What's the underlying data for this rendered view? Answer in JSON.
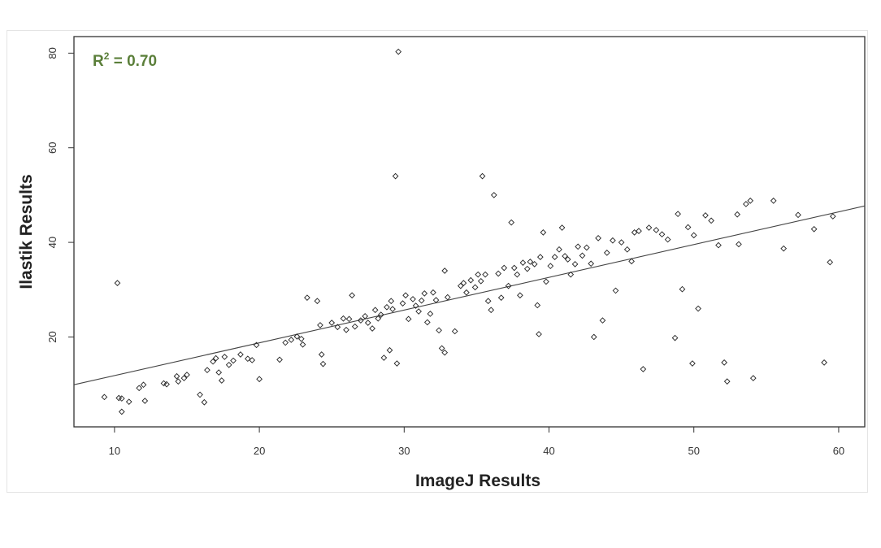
{
  "colors": {
    "annotation": "#5b7f3a",
    "points": "#222222",
    "line": "#444444",
    "axes": "#333333"
  },
  "chart_data": {
    "type": "scatter",
    "xlabel": "ImageJ Results",
    "ylabel": "Ilastik Results",
    "xlim": [
      7.2,
      61.8
    ],
    "ylim": [
      1.0,
      83.5
    ],
    "x_ticks": [
      10,
      20,
      30,
      40,
      50,
      60
    ],
    "y_ticks": [
      20,
      40,
      60,
      80
    ],
    "grid": false,
    "annotation": {
      "prefix": "R",
      "superscript": "2",
      "suffix": " = 0.70"
    },
    "regression_line": {
      "x": [
        7.2,
        61.8
      ],
      "y": [
        9.9,
        47.7
      ]
    },
    "points": [
      [
        9.3,
        7.3
      ],
      [
        10.2,
        31.4
      ],
      [
        10.3,
        7.1
      ],
      [
        10.5,
        7.0
      ],
      [
        10.5,
        4.2
      ],
      [
        11.0,
        6.3
      ],
      [
        11.7,
        9.2
      ],
      [
        12.0,
        9.9
      ],
      [
        12.1,
        6.5
      ],
      [
        13.4,
        10.2
      ],
      [
        13.6,
        10.0
      ],
      [
        14.3,
        11.7
      ],
      [
        14.4,
        10.6
      ],
      [
        14.8,
        11.3
      ],
      [
        15.0,
        12.0
      ],
      [
        15.9,
        7.8
      ],
      [
        16.2,
        6.2
      ],
      [
        16.4,
        13.0
      ],
      [
        16.8,
        14.8
      ],
      [
        17.0,
        15.5
      ],
      [
        17.2,
        12.5
      ],
      [
        17.4,
        10.8
      ],
      [
        17.6,
        15.8
      ],
      [
        17.9,
        14.1
      ],
      [
        18.2,
        15.0
      ],
      [
        18.7,
        16.3
      ],
      [
        19.2,
        15.4
      ],
      [
        19.5,
        15.1
      ],
      [
        19.8,
        18.3
      ],
      [
        20.0,
        11.1
      ],
      [
        21.4,
        15.2
      ],
      [
        21.8,
        18.8
      ],
      [
        22.2,
        19.4
      ],
      [
        22.6,
        20.1
      ],
      [
        22.9,
        19.6
      ],
      [
        23.0,
        18.4
      ],
      [
        23.3,
        28.3
      ],
      [
        24.0,
        27.6
      ],
      [
        24.2,
        22.5
      ],
      [
        24.4,
        14.3
      ],
      [
        24.3,
        16.3
      ],
      [
        25.0,
        23.0
      ],
      [
        25.4,
        22.1
      ],
      [
        25.8,
        23.9
      ],
      [
        26.0,
        21.5
      ],
      [
        26.2,
        23.8
      ],
      [
        26.4,
        28.8
      ],
      [
        26.6,
        22.2
      ],
      [
        27.0,
        23.5
      ],
      [
        27.3,
        24.4
      ],
      [
        27.5,
        23.0
      ],
      [
        27.8,
        21.8
      ],
      [
        28.0,
        25.7
      ],
      [
        28.2,
        23.9
      ],
      [
        28.4,
        24.7
      ],
      [
        28.6,
        15.6
      ],
      [
        28.8,
        26.3
      ],
      [
        29.0,
        17.2
      ],
      [
        29.1,
        27.6
      ],
      [
        29.2,
        25.9
      ],
      [
        29.4,
        54.0
      ],
      [
        29.5,
        14.4
      ],
      [
        29.6,
        80.3
      ],
      [
        29.9,
        27.1
      ],
      [
        30.1,
        28.8
      ],
      [
        30.3,
        23.8
      ],
      [
        30.6,
        28.0
      ],
      [
        30.8,
        26.6
      ],
      [
        31.0,
        25.4
      ],
      [
        31.2,
        27.7
      ],
      [
        31.4,
        29.2
      ],
      [
        31.6,
        23.1
      ],
      [
        31.8,
        24.9
      ],
      [
        32.0,
        29.4
      ],
      [
        32.2,
        27.8
      ],
      [
        32.4,
        21.4
      ],
      [
        32.6,
        17.6
      ],
      [
        32.8,
        16.7
      ],
      [
        32.8,
        34.0
      ],
      [
        33.0,
        28.4
      ],
      [
        33.5,
        21.2
      ],
      [
        33.9,
        30.8
      ],
      [
        34.1,
        31.4
      ],
      [
        34.3,
        29.4
      ],
      [
        34.6,
        32.0
      ],
      [
        34.9,
        30.5
      ],
      [
        35.1,
        33.2
      ],
      [
        35.3,
        31.8
      ],
      [
        35.4,
        54.0
      ],
      [
        35.6,
        33.2
      ],
      [
        35.8,
        27.6
      ],
      [
        36.0,
        25.7
      ],
      [
        36.2,
        50.0
      ],
      [
        36.5,
        33.4
      ],
      [
        36.7,
        28.3
      ],
      [
        36.9,
        34.6
      ],
      [
        37.2,
        30.8
      ],
      [
        37.4,
        44.2
      ],
      [
        37.6,
        34.6
      ],
      [
        37.8,
        33.2
      ],
      [
        38.0,
        28.8
      ],
      [
        38.2,
        35.7
      ],
      [
        38.5,
        34.4
      ],
      [
        38.7,
        35.9
      ],
      [
        39.0,
        35.4
      ],
      [
        39.2,
        26.7
      ],
      [
        39.3,
        20.6
      ],
      [
        39.4,
        36.9
      ],
      [
        39.6,
        42.1
      ],
      [
        39.8,
        31.7
      ],
      [
        40.1,
        35.0
      ],
      [
        40.4,
        36.9
      ],
      [
        40.7,
        38.5
      ],
      [
        40.9,
        43.1
      ],
      [
        41.1,
        37.1
      ],
      [
        41.3,
        36.4
      ],
      [
        41.5,
        33.2
      ],
      [
        41.8,
        35.4
      ],
      [
        42.0,
        39.1
      ],
      [
        42.3,
        37.2
      ],
      [
        42.6,
        38.9
      ],
      [
        42.9,
        35.5
      ],
      [
        43.1,
        20.0
      ],
      [
        43.4,
        40.9
      ],
      [
        43.7,
        23.5
      ],
      [
        44.0,
        37.8
      ],
      [
        44.4,
        40.4
      ],
      [
        44.6,
        29.8
      ],
      [
        45.0,
        40.0
      ],
      [
        45.4,
        38.5
      ],
      [
        45.7,
        36.0
      ],
      [
        45.9,
        42.1
      ],
      [
        46.2,
        42.4
      ],
      [
        46.5,
        13.2
      ],
      [
        46.9,
        43.1
      ],
      [
        47.4,
        42.6
      ],
      [
        47.8,
        41.7
      ],
      [
        48.2,
        40.6
      ],
      [
        48.7,
        19.8
      ],
      [
        48.9,
        46.0
      ],
      [
        49.2,
        30.1
      ],
      [
        49.6,
        43.2
      ],
      [
        49.9,
        14.4
      ],
      [
        50.0,
        41.5
      ],
      [
        50.3,
        26.0
      ],
      [
        50.8,
        45.7
      ],
      [
        51.2,
        44.6
      ],
      [
        51.7,
        39.4
      ],
      [
        52.1,
        14.6
      ],
      [
        52.3,
        10.6
      ],
      [
        53.0,
        45.9
      ],
      [
        53.1,
        39.6
      ],
      [
        53.6,
        48.1
      ],
      [
        53.9,
        48.8
      ],
      [
        54.1,
        11.3
      ],
      [
        55.5,
        48.8
      ],
      [
        56.2,
        38.7
      ],
      [
        57.2,
        45.8
      ],
      [
        58.3,
        42.8
      ],
      [
        59.0,
        14.6
      ],
      [
        59.4,
        35.8
      ],
      [
        59.6,
        45.5
      ]
    ]
  }
}
